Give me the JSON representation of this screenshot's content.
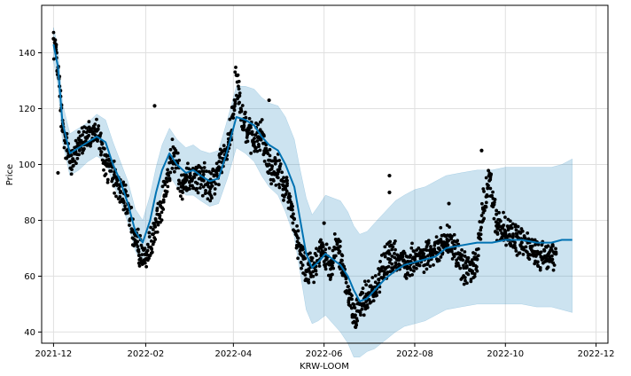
{
  "chart_data": {
    "type": "scatter",
    "title": "",
    "xlabel": "KRW-LOOM",
    "ylabel": "Price",
    "x_ticks": [
      "2021-12",
      "2022-02",
      "2022-04",
      "2022-06",
      "2022-08",
      "2022-10",
      "2022-12"
    ],
    "y_ticks": [
      40,
      60,
      80,
      100,
      120,
      140
    ],
    "xlim": [
      "2021-11-23",
      "2022-12-09"
    ],
    "ylim": [
      36,
      157
    ],
    "grid": true,
    "colors": {
      "points": "#000000",
      "forecast_line": "#0072B2",
      "uncertainty_band": "#0072B2",
      "grid": "#e0e0e0"
    },
    "series": [
      {
        "kind": "observed",
        "x": [
          "2021-12-01",
          "2021-12-03",
          "2021-12-05",
          "2021-12-07",
          "2021-12-10",
          "2021-12-14",
          "2021-12-19",
          "2021-12-24",
          "2021-12-30",
          "2022-01-05",
          "2022-01-10",
          "2022-01-15",
          "2022-01-20",
          "2022-01-25",
          "2022-02-01",
          "2022-02-06",
          "2022-02-10",
          "2022-02-15",
          "2022-02-20",
          "2022-02-25",
          "2022-03-03",
          "2022-03-10",
          "2022-03-17",
          "2022-03-22",
          "2022-03-28",
          "2022-04-01",
          "2022-04-03",
          "2022-04-06",
          "2022-04-10",
          "2022-04-15",
          "2022-04-20",
          "2022-04-25",
          "2022-05-01",
          "2022-05-06",
          "2022-05-10",
          "2022-05-13",
          "2022-05-16",
          "2022-05-20",
          "2022-05-25",
          "2022-05-30",
          "2022-06-05",
          "2022-06-10",
          "2022-06-14",
          "2022-06-18",
          "2022-06-22",
          "2022-06-26",
          "2022-07-01",
          "2022-07-06",
          "2022-07-10",
          "2022-07-15",
          "2022-07-20",
          "2022-07-25",
          "2022-08-01",
          "2022-08-07",
          "2022-08-12",
          "2022-08-17",
          "2022-08-22",
          "2022-08-28",
          "2022-09-03",
          "2022-09-08",
          "2022-09-12",
          "2022-09-16",
          "2022-09-20",
          "2022-09-25",
          "2022-10-01",
          "2022-10-06",
          "2022-10-12",
          "2022-10-18",
          "2022-10-24",
          "2022-10-30",
          "2022-11-04"
        ],
        "y": [
          145,
          140,
          128,
          112,
          105,
          102,
          108,
          110,
          112,
          100,
          95,
          90,
          86,
          72,
          66,
          75,
          82,
          95,
          104,
          92,
          96,
          95,
          92,
          98,
          106,
          118,
          132,
          120,
          112,
          108,
          110,
          100,
          98,
          92,
          85,
          75,
          68,
          62,
          64,
          70,
          65,
          72,
          62,
          52,
          46,
          50,
          54,
          56,
          62,
          68,
          66,
          64,
          66,
          68,
          68,
          70,
          72,
          70,
          63,
          62,
          66,
          84,
          96,
          78,
          76,
          74,
          72,
          70,
          68,
          68,
          68
        ]
      },
      {
        "kind": "observed_outliers",
        "x": [
          "2021-12-04",
          "2022-02-07",
          "2022-04-25",
          "2022-07-15",
          "2022-07-15",
          "2022-08-24",
          "2022-09-15",
          "2022-09-21",
          "2022-06-01"
        ],
        "y": [
          97,
          121,
          123,
          96,
          90,
          86,
          105,
          96,
          79
        ]
      },
      {
        "kind": "forecast",
        "x": [
          "2021-12-01",
          "2021-12-04",
          "2021-12-07",
          "2021-12-12",
          "2021-12-18",
          "2021-12-24",
          "2021-12-30",
          "2022-01-05",
          "2022-01-10",
          "2022-01-15",
          "2022-01-20",
          "2022-01-25",
          "2022-01-30",
          "2022-02-04",
          "2022-02-08",
          "2022-02-12",
          "2022-02-17",
          "2022-02-22",
          "2022-02-28",
          "2022-03-05",
          "2022-03-10",
          "2022-03-16",
          "2022-03-22",
          "2022-03-28",
          "2022-04-03",
          "2022-04-09",
          "2022-04-15",
          "2022-04-20",
          "2022-04-25",
          "2022-05-01",
          "2022-05-06",
          "2022-05-12",
          "2022-05-16",
          "2022-05-20",
          "2022-05-24",
          "2022-05-28",
          "2022-06-02",
          "2022-06-07",
          "2022-06-12",
          "2022-06-17",
          "2022-06-21",
          "2022-06-25",
          "2022-06-30",
          "2022-07-05",
          "2022-07-12",
          "2022-07-19",
          "2022-07-25",
          "2022-08-01",
          "2022-08-08",
          "2022-08-15",
          "2022-08-22",
          "2022-09-01",
          "2022-09-12",
          "2022-09-22",
          "2022-10-01",
          "2022-10-12",
          "2022-10-22",
          "2022-11-01",
          "2022-11-08",
          "2022-11-15"
        ],
        "yhat": [
          143,
          135,
          115,
          104,
          106,
          108,
          110,
          108,
          100,
          94,
          86,
          76,
          72,
          80,
          90,
          98,
          104,
          100,
          97,
          98,
          96,
          94,
          95,
          105,
          117,
          116,
          114,
          110,
          107,
          105,
          100,
          92,
          80,
          68,
          63,
          65,
          68,
          66,
          64,
          60,
          55,
          51,
          52,
          55,
          59,
          62,
          64,
          65,
          66,
          67,
          70,
          71,
          72,
          72,
          73,
          73,
          72,
          72,
          73,
          73
        ],
        "yhat_lower": [
          137,
          128,
          108,
          96,
          98,
          101,
          103,
          101,
          93,
          87,
          79,
          69,
          64,
          72,
          82,
          90,
          96,
          92,
          89,
          89,
          87,
          85,
          86,
          95,
          106,
          104,
          101,
          96,
          92,
          89,
          83,
          74,
          61,
          48,
          43,
          44,
          46,
          43,
          40,
          36,
          31,
          31,
          33,
          34,
          37,
          40,
          42,
          43,
          44,
          46,
          48,
          49,
          50,
          50,
          50,
          50,
          49,
          49,
          48,
          47
        ],
        "yhat_upper": [
          149,
          142,
          122,
          111,
          113,
          115,
          118,
          116,
          108,
          101,
          94,
          84,
          80,
          89,
          99,
          107,
          113,
          109,
          106,
          107,
          105,
          104,
          105,
          116,
          128,
          128,
          127,
          124,
          122,
          121,
          117,
          109,
          98,
          88,
          82,
          85,
          89,
          88,
          87,
          83,
          78,
          75,
          76,
          79,
          83,
          87,
          89,
          91,
          92,
          94,
          96,
          97,
          98,
          98,
          99,
          99,
          99,
          99,
          100,
          102
        ]
      }
    ]
  }
}
